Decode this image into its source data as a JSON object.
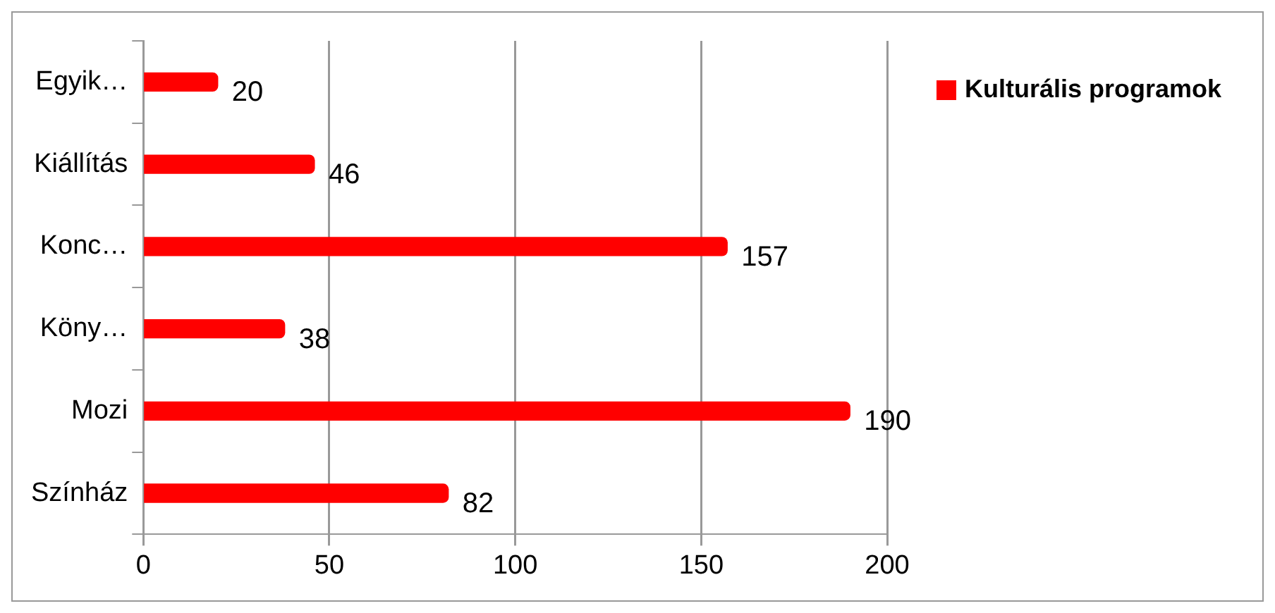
{
  "chart_data": {
    "type": "bar",
    "orientation": "horizontal",
    "categories": [
      "Egyik…",
      "Kiállítás",
      "Konc…",
      "Köny…",
      "Mozi",
      "Színház"
    ],
    "series": [
      {
        "name": "Kulturális programok",
        "color": "#ff0000",
        "values": [
          20,
          46,
          157,
          38,
          190,
          82
        ]
      }
    ],
    "xlim": [
      0,
      200
    ],
    "xticks": [
      0,
      50,
      100,
      150,
      200
    ],
    "grid": "x",
    "legend": "top right",
    "data_labels": true
  }
}
